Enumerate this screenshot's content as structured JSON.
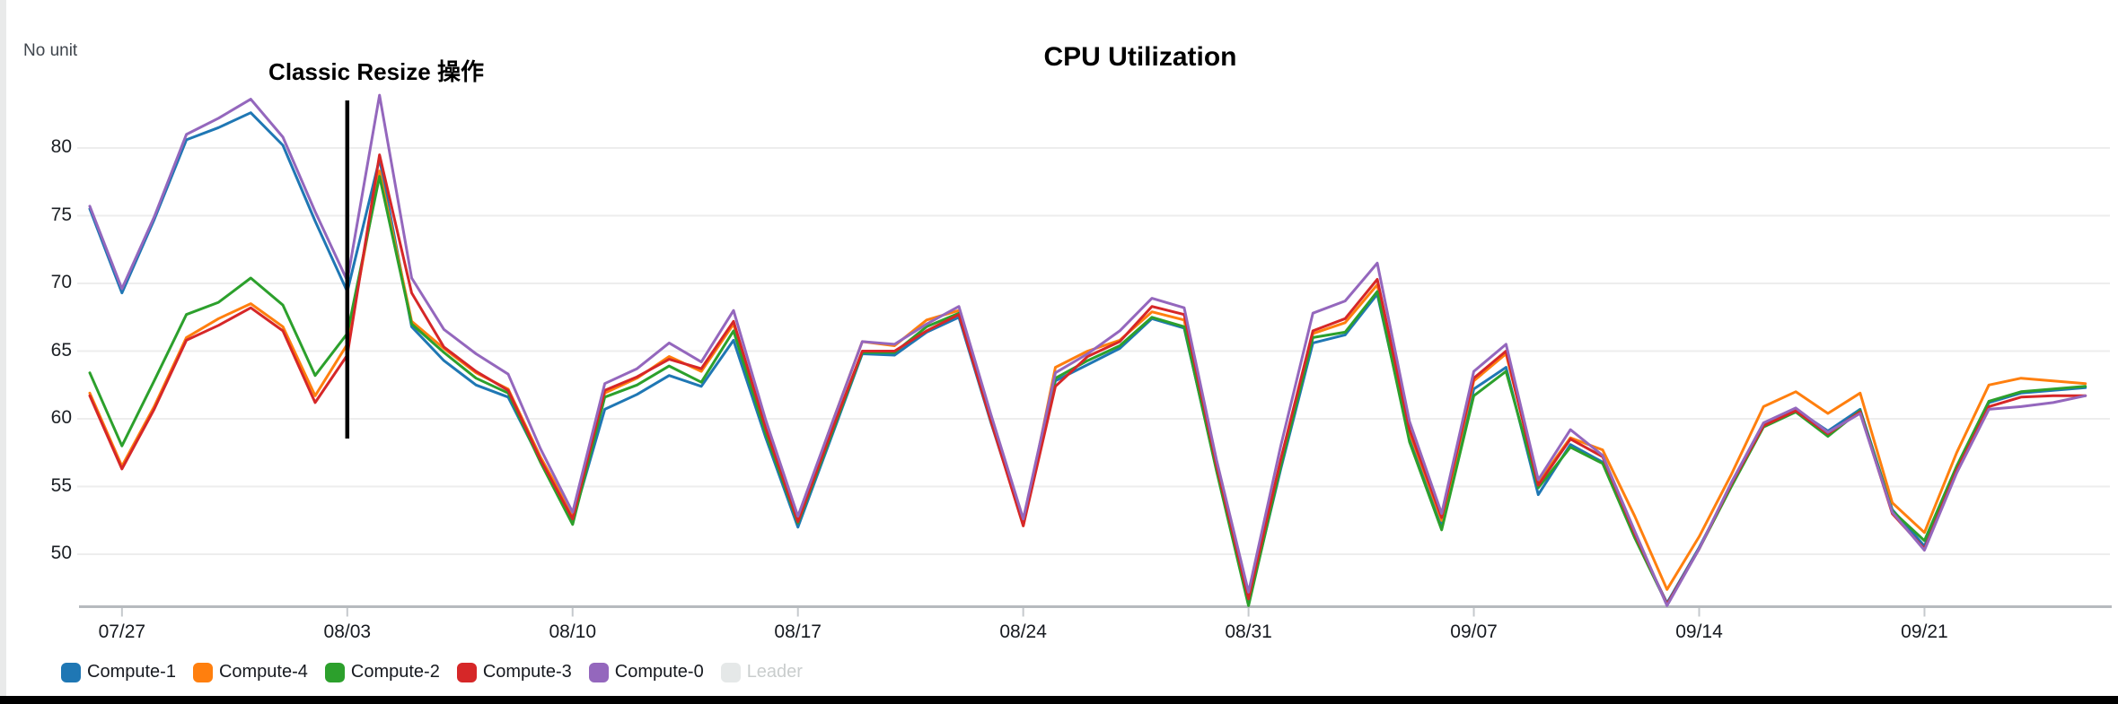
{
  "page": {
    "background_color": "#ffffff",
    "bottom_bar_color": "#000000",
    "left_edge_color": "#e9eaea"
  },
  "chart_data": {
    "type": "line",
    "title": "CPU Utilization",
    "ylabel": "No unit",
    "xlabel": "",
    "ylim": [
      46,
      86
    ],
    "yticks": [
      50,
      55,
      60,
      65,
      70,
      75,
      80
    ],
    "xticks": [
      "07/27",
      "08/03",
      "08/10",
      "08/17",
      "08/24",
      "08/31",
      "09/07",
      "09/14",
      "09/21"
    ],
    "xtick_indices": [
      1,
      8,
      15,
      22,
      29,
      36,
      43,
      50,
      57
    ],
    "grid": "horizontal",
    "grid_color": "#ededed",
    "axis_color": "#b6babe",
    "tick_color": "#c5c9cd",
    "legend_position": "bottom-left",
    "annotation": {
      "label": "Classic Resize 操作",
      "x_index": 8,
      "x_label": "08/03",
      "line_color": "#000000"
    },
    "x": [
      "07/26",
      "07/27",
      "07/28",
      "07/29",
      "07/30",
      "07/31",
      "08/01",
      "08/02",
      "08/03",
      "08/04",
      "08/05",
      "08/06",
      "08/07",
      "08/08",
      "08/09",
      "08/10",
      "08/11",
      "08/12",
      "08/13",
      "08/14",
      "08/15",
      "08/16",
      "08/17",
      "08/18",
      "08/19",
      "08/20",
      "08/21",
      "08/22",
      "08/23",
      "08/24",
      "08/25",
      "08/26",
      "08/27",
      "08/28",
      "08/29",
      "08/30",
      "08/31",
      "09/01",
      "09/02",
      "09/03",
      "09/04",
      "09/05",
      "09/06",
      "09/07",
      "09/08",
      "09/09",
      "09/10",
      "09/11",
      "09/12",
      "09/13",
      "09/14",
      "09/15",
      "09/16",
      "09/17",
      "09/18",
      "09/19",
      "09/20",
      "09/21",
      "09/22",
      "09/23",
      "09/24",
      "09/25",
      "09/26"
    ],
    "series": [
      {
        "name": "Compute-1",
        "color": "#1f77b4",
        "values": [
          75.5,
          69.3,
          74.7,
          80.6,
          81.5,
          82.6,
          80.2,
          74.6,
          69.4,
          79.2,
          66.8,
          64.3,
          62.5,
          61.6,
          56.9,
          52.5,
          60.7,
          61.8,
          63.2,
          62.4,
          65.8,
          58.6,
          52.0,
          58.4,
          64.8,
          64.7,
          66.4,
          67.5,
          59.7,
          52.3,
          62.8,
          64.0,
          65.2,
          67.4,
          66.7,
          56.3,
          46.4,
          56.3,
          65.6,
          66.2,
          69.2,
          58.6,
          52.2,
          62.2,
          63.8,
          54.4,
          58.1,
          56.8,
          51.3,
          46.4,
          50.5,
          55.1,
          59.6,
          60.7,
          59.1,
          60.7,
          53.3,
          50.6,
          56.3,
          61.2,
          61.9,
          62.1,
          62.3
        ]
      },
      {
        "name": "Compute-4",
        "color": "#ff7f0e",
        "values": [
          61.9,
          56.5,
          60.9,
          66.0,
          67.4,
          68.5,
          66.8,
          61.7,
          65.5,
          78.3,
          67.2,
          65.2,
          63.4,
          62.2,
          57.2,
          52.9,
          61.9,
          63.0,
          64.6,
          63.5,
          67.0,
          59.2,
          52.6,
          59.3,
          65.7,
          65.4,
          67.3,
          68.0,
          59.9,
          52.1,
          63.8,
          65.0,
          65.8,
          67.9,
          67.3,
          56.4,
          46.5,
          56.8,
          66.3,
          67.1,
          69.9,
          59.0,
          52.5,
          62.8,
          64.8,
          55.3,
          58.6,
          57.7,
          52.8,
          47.4,
          51.3,
          55.9,
          60.9,
          62.0,
          60.4,
          61.9,
          53.8,
          51.6,
          57.5,
          62.5,
          63.0,
          62.8,
          62.6
        ]
      },
      {
        "name": "Compute-2",
        "color": "#2ca02c",
        "values": [
          63.4,
          58.0,
          62.8,
          67.7,
          68.6,
          70.4,
          68.4,
          63.2,
          66.3,
          77.9,
          67.0,
          64.9,
          63.0,
          61.9,
          56.8,
          52.2,
          61.6,
          62.5,
          63.9,
          62.7,
          66.5,
          58.9,
          52.3,
          58.6,
          64.9,
          64.9,
          66.8,
          67.8,
          59.8,
          52.4,
          63.0,
          64.3,
          65.4,
          67.5,
          66.8,
          56.2,
          46.2,
          56.5,
          66.0,
          66.4,
          69.4,
          58.3,
          51.8,
          61.7,
          63.5,
          54.9,
          57.9,
          56.7,
          51.2,
          46.3,
          50.4,
          55.0,
          59.4,
          60.5,
          58.7,
          60.6,
          53.2,
          51.0,
          56.5,
          61.3,
          62.0,
          62.2,
          62.4
        ]
      },
      {
        "name": "Compute-3",
        "color": "#d62728",
        "values": [
          61.7,
          56.3,
          60.7,
          65.8,
          66.9,
          68.2,
          66.5,
          61.2,
          64.7,
          79.5,
          69.3,
          65.3,
          63.5,
          62.1,
          57.0,
          52.6,
          62.1,
          63.1,
          64.4,
          63.7,
          67.2,
          59.3,
          52.4,
          58.8,
          65.0,
          65.0,
          66.5,
          67.7,
          59.8,
          52.1,
          62.4,
          64.6,
          65.7,
          68.3,
          67.7,
          56.6,
          46.7,
          57.0,
          66.5,
          67.4,
          70.3,
          59.2,
          52.7,
          63.0,
          65.0,
          55.1,
          58.5,
          57.2,
          51.5,
          46.3,
          50.4,
          55.2,
          59.5,
          60.6,
          58.9,
          60.5,
          53.0,
          50.4,
          56.2,
          60.9,
          61.6,
          61.7,
          61.7
        ]
      },
      {
        "name": "Compute-0",
        "color": "#9467bd",
        "values": [
          75.7,
          69.6,
          74.9,
          81.0,
          82.2,
          83.6,
          80.8,
          75.3,
          70.2,
          83.9,
          70.4,
          66.6,
          64.8,
          63.3,
          57.8,
          53.1,
          62.6,
          63.7,
          65.6,
          64.2,
          68.0,
          59.9,
          52.8,
          59.3,
          65.7,
          65.5,
          67.0,
          68.3,
          60.3,
          52.6,
          63.4,
          64.8,
          66.5,
          68.9,
          68.2,
          57.0,
          47.2,
          58.0,
          67.8,
          68.7,
          71.5,
          59.8,
          53.0,
          63.5,
          65.5,
          55.5,
          59.2,
          57.3,
          51.7,
          46.2,
          50.4,
          55.3,
          59.7,
          60.8,
          59.0,
          60.4,
          53.1,
          50.3,
          56.0,
          60.7,
          60.9,
          61.2,
          61.7
        ]
      }
    ],
    "leader": {
      "name": "Leader",
      "color": "#e5e8e8",
      "label_color": "#c9cdcd",
      "state": "disabled"
    }
  }
}
